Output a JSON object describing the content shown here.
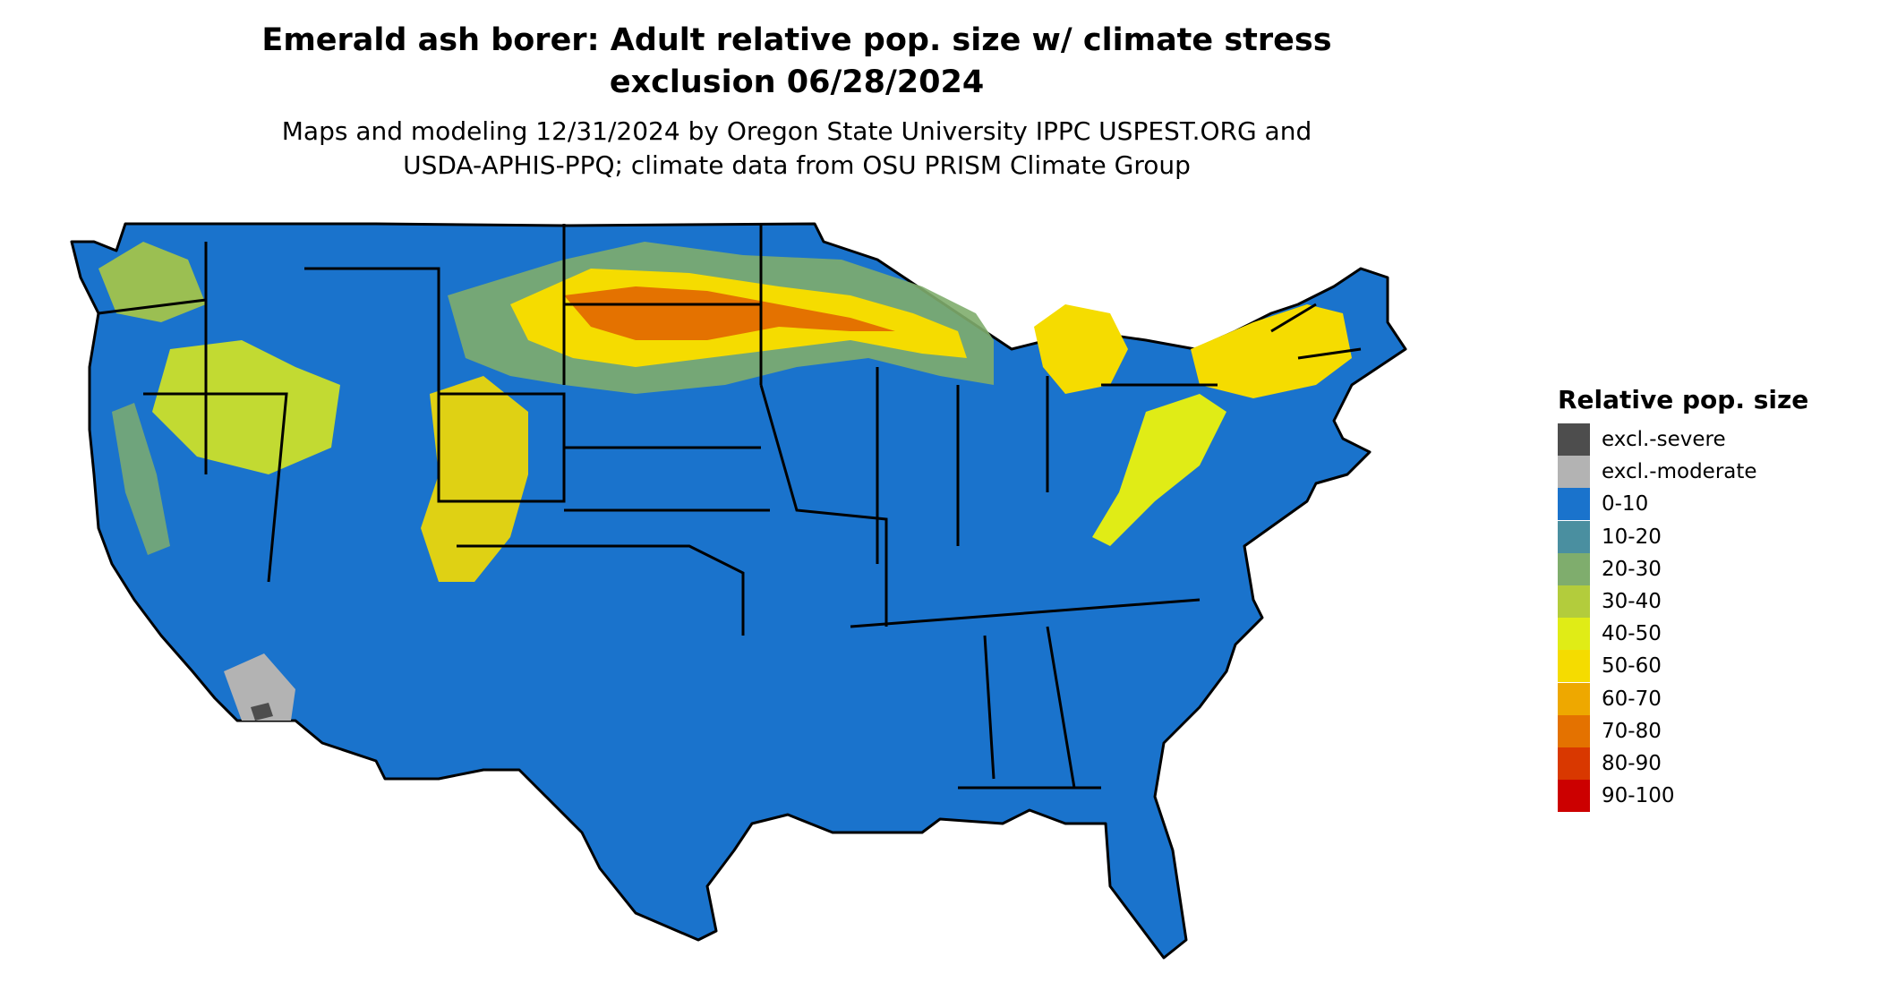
{
  "title_line1": "Emerald ash borer: Adult relative pop. size w/ climate stress",
  "title_line2": "exclusion 06/28/2024",
  "subtitle_line1": "Maps and modeling 12/31/2024 by Oregon State University IPPC USPEST.ORG and",
  "subtitle_line2": "USDA-APHIS-PPQ; climate data from OSU PRISM Climate Group",
  "legend": {
    "title": "Relative pop. size",
    "items": [
      {
        "label": "excl.-severe",
        "color": "#4d4d4d"
      },
      {
        "label": "excl.-moderate",
        "color": "#b3b3b3"
      },
      {
        "label": "0-10",
        "color": "#1a73cc"
      },
      {
        "label": "10-20",
        "color": "#4a8fa0"
      },
      {
        "label": "20-30",
        "color": "#7fad6d"
      },
      {
        "label": "30-40",
        "color": "#b3cc3c"
      },
      {
        "label": "40-50",
        "color": "#e0ec16"
      },
      {
        "label": "50-60",
        "color": "#f5dc00"
      },
      {
        "label": "60-70",
        "color": "#eea800"
      },
      {
        "label": "70-80",
        "color": "#e47200"
      },
      {
        "label": "80-90",
        "color": "#d93800"
      },
      {
        "label": "90-100",
        "color": "#cc0000"
      }
    ]
  }
}
